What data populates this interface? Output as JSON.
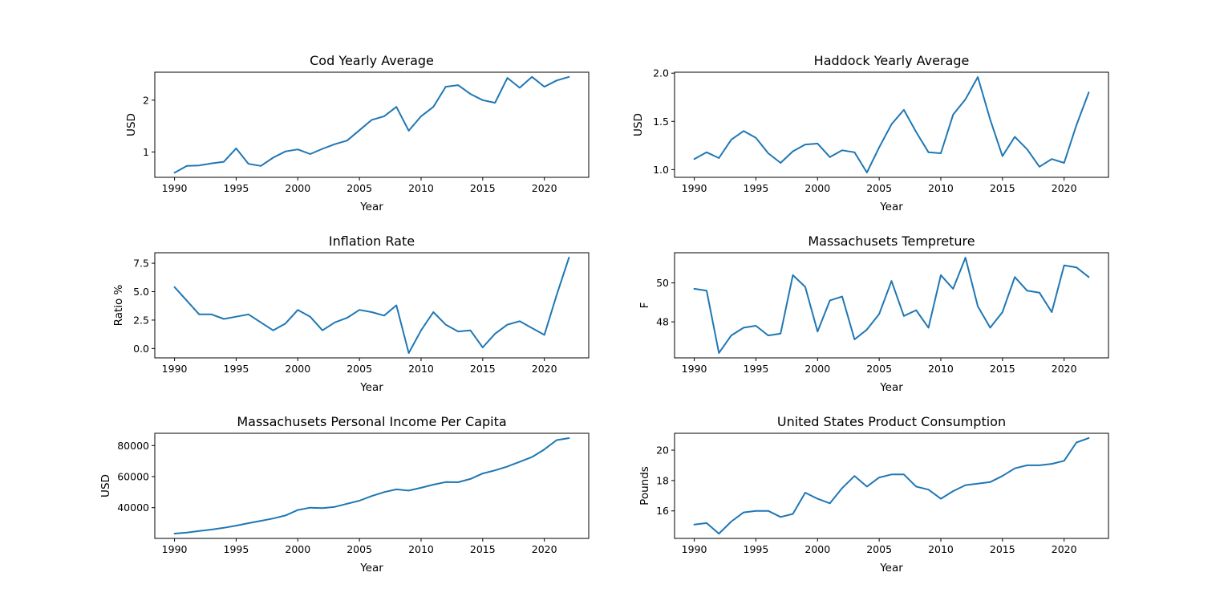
{
  "chart_data": [
    {
      "type": "line",
      "title": "Cod Yearly Average",
      "xlabel": "Year",
      "ylabel": "USD",
      "x": [
        1990,
        1991,
        1992,
        1993,
        1994,
        1995,
        1996,
        1997,
        1998,
        1999,
        2000,
        2001,
        2002,
        2003,
        2004,
        2005,
        2006,
        2007,
        2008,
        2009,
        2010,
        2011,
        2012,
        2013,
        2014,
        2015,
        2016,
        2017,
        2018,
        2019,
        2020,
        2021,
        2022
      ],
      "series": [
        {
          "values": [
            0.6,
            0.73,
            0.74,
            0.78,
            0.81,
            1.07,
            0.77,
            0.73,
            0.89,
            1.01,
            1.05,
            0.96,
            1.06,
            1.15,
            1.22,
            1.42,
            1.62,
            1.69,
            1.87,
            1.41,
            1.69,
            1.87,
            2.26,
            2.29,
            2.12,
            2.0,
            1.95,
            2.43,
            2.24,
            2.45,
            2.26,
            2.38,
            2.45
          ]
        }
      ],
      "xticks": [
        "1990",
        "1995",
        "2000",
        "2005",
        "2010",
        "2015",
        "2020"
      ],
      "yticks": [
        "1",
        "2"
      ],
      "xlim": [
        1988.4,
        2023.6
      ],
      "ylim": [
        0.51,
        2.54
      ],
      "grid": false,
      "color": "#1f77b4"
    },
    {
      "type": "line",
      "title": "Haddock Yearly Average",
      "xlabel": "Year",
      "ylabel": "USD",
      "x": [
        1990,
        1991,
        1992,
        1993,
        1994,
        1995,
        1996,
        1997,
        1998,
        1999,
        2000,
        2001,
        2002,
        2003,
        2004,
        2005,
        2006,
        2007,
        2008,
        2009,
        2010,
        2011,
        2012,
        2013,
        2014,
        2015,
        2016,
        2017,
        2018,
        2019,
        2020,
        2021,
        2022
      ],
      "series": [
        {
          "values": [
            1.11,
            1.18,
            1.12,
            1.31,
            1.4,
            1.33,
            1.17,
            1.07,
            1.19,
            1.26,
            1.27,
            1.13,
            1.2,
            1.18,
            0.97,
            1.23,
            1.47,
            1.62,
            1.39,
            1.18,
            1.17,
            1.57,
            1.73,
            1.96,
            1.52,
            1.14,
            1.34,
            1.21,
            1.03,
            1.11,
            1.07,
            1.46,
            1.8
          ]
        }
      ],
      "xticks": [
        "1990",
        "1995",
        "2000",
        "2005",
        "2010",
        "2015",
        "2020"
      ],
      "yticks": [
        "1.0",
        "1.5",
        "2.0"
      ],
      "xlim": [
        1988.4,
        2023.6
      ],
      "ylim": [
        0.92,
        2.01
      ],
      "grid": false,
      "color": "#1f77b4"
    },
    {
      "type": "line",
      "title": "Inflation Rate",
      "xlabel": "Year",
      "ylabel": "Ratio %",
      "x": [
        1990,
        1991,
        1992,
        1993,
        1994,
        1995,
        1996,
        1997,
        1998,
        1999,
        2000,
        2001,
        2002,
        2003,
        2004,
        2005,
        2006,
        2007,
        2008,
        2009,
        2010,
        2011,
        2012,
        2013,
        2014,
        2015,
        2016,
        2017,
        2018,
        2019,
        2020,
        2021,
        2022
      ],
      "series": [
        {
          "values": [
            5.4,
            4.2,
            3.0,
            3.0,
            2.6,
            2.8,
            3.0,
            2.3,
            1.6,
            2.2,
            3.4,
            2.8,
            1.6,
            2.3,
            2.7,
            3.4,
            3.2,
            2.9,
            3.8,
            -0.4,
            1.6,
            3.2,
            2.1,
            1.5,
            1.6,
            0.1,
            1.3,
            2.1,
            2.4,
            1.8,
            1.2,
            4.7,
            8.0
          ]
        }
      ],
      "xticks": [
        "1990",
        "1995",
        "2000",
        "2005",
        "2010",
        "2015",
        "2020"
      ],
      "yticks": [
        "0.0",
        "2.5",
        "5.0",
        "7.5"
      ],
      "xlim": [
        1988.4,
        2023.6
      ],
      "ylim": [
        -0.82,
        8.42
      ],
      "grid": false,
      "color": "#1f77b4"
    },
    {
      "type": "line",
      "title": "Massachusets Tempreture",
      "xlabel": "Year",
      "ylabel": "F",
      "x": [
        1990,
        1991,
        1992,
        1993,
        1994,
        1995,
        1996,
        1997,
        1998,
        1999,
        2000,
        2001,
        2002,
        2003,
        2004,
        2005,
        2006,
        2007,
        2008,
        2009,
        2010,
        2011,
        2012,
        2013,
        2014,
        2015,
        2016,
        2017,
        2018,
        2019,
        2020,
        2021,
        2022
      ],
      "series": [
        {
          "values": [
            49.7,
            49.6,
            46.4,
            47.3,
            47.7,
            47.8,
            47.3,
            47.4,
            50.4,
            49.8,
            47.5,
            49.1,
            49.3,
            47.1,
            47.6,
            48.4,
            50.1,
            48.3,
            48.6,
            47.7,
            50.4,
            49.7,
            51.3,
            48.8,
            47.7,
            48.5,
            50.3,
            49.6,
            49.5,
            48.5,
            50.9,
            50.8,
            50.3
          ]
        }
      ],
      "xticks": [
        "1990",
        "1995",
        "2000",
        "2005",
        "2010",
        "2015",
        "2020"
      ],
      "yticks": [
        "48",
        "50"
      ],
      "xlim": [
        1988.4,
        2023.6
      ],
      "ylim": [
        46.15,
        51.55
      ],
      "grid": false,
      "color": "#1f77b4"
    },
    {
      "type": "line",
      "title": "Massachusets Personal Income Per Capita",
      "xlabel": "Year",
      "ylabel": "USD",
      "x": [
        1990,
        1991,
        1992,
        1993,
        1994,
        1995,
        1996,
        1997,
        1998,
        1999,
        2000,
        2001,
        2002,
        2003,
        2004,
        2005,
        2006,
        2007,
        2008,
        2009,
        2010,
        2011,
        2012,
        2013,
        2014,
        2015,
        2016,
        2017,
        2018,
        2019,
        2020,
        2021,
        2022
      ],
      "series": [
        {
          "values": [
            23300,
            23900,
            25000,
            25900,
            27000,
            28400,
            30000,
            31500,
            33000,
            35000,
            38500,
            40000,
            39700,
            40500,
            42500,
            44500,
            47500,
            50000,
            51800,
            51000,
            52800,
            54800,
            56500,
            56400,
            58500,
            62000,
            64000,
            66500,
            69500,
            72600,
            77500,
            83500,
            84800
          ]
        }
      ],
      "xticks": [
        "1990",
        "1995",
        "2000",
        "2005",
        "2010",
        "2015",
        "2020"
      ],
      "yticks": [
        "40000",
        "60000",
        "80000"
      ],
      "xlim": [
        1988.4,
        2023.6
      ],
      "ylim": [
        20200,
        87900
      ],
      "grid": false,
      "color": "#1f77b4"
    },
    {
      "type": "line",
      "title": "United States Product Consumption",
      "xlabel": "Year",
      "ylabel": "Pounds",
      "x": [
        1990,
        1991,
        1992,
        1993,
        1994,
        1995,
        1996,
        1997,
        1998,
        1999,
        2000,
        2001,
        2002,
        2003,
        2004,
        2005,
        2006,
        2007,
        2008,
        2009,
        2010,
        2011,
        2012,
        2013,
        2014,
        2015,
        2016,
        2017,
        2018,
        2019,
        2020,
        2021,
        2022
      ],
      "series": [
        {
          "values": [
            15.1,
            15.2,
            14.5,
            15.3,
            15.9,
            16.0,
            16.0,
            15.6,
            15.8,
            17.2,
            16.8,
            16.5,
            17.5,
            18.3,
            17.6,
            18.2,
            18.4,
            18.4,
            17.6,
            17.4,
            16.8,
            17.3,
            17.7,
            17.8,
            17.9,
            18.3,
            18.8,
            19.0,
            19.0,
            19.1,
            19.3,
            20.5,
            20.8
          ]
        }
      ],
      "xticks": [
        "1990",
        "1995",
        "2000",
        "2005",
        "2010",
        "2015",
        "2020"
      ],
      "yticks": [
        "16",
        "18",
        "20"
      ],
      "xlim": [
        1988.4,
        2023.6
      ],
      "ylim": [
        14.19,
        21.11
      ],
      "grid": false,
      "color": "#1f77b4"
    }
  ]
}
